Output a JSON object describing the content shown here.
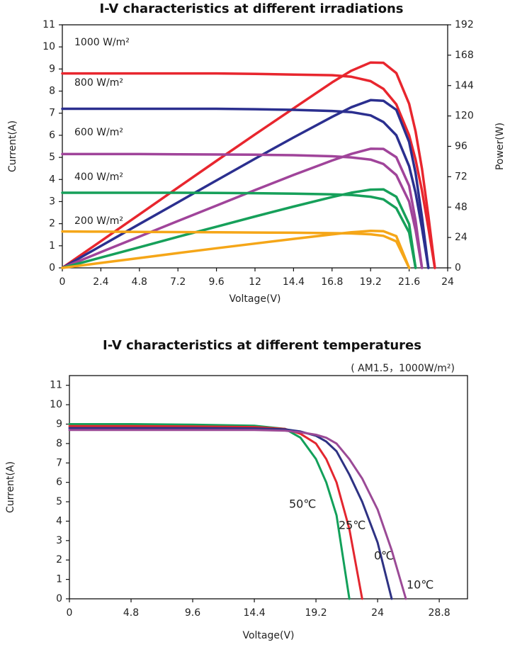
{
  "chart_data": [
    {
      "type": "line",
      "title": "I-V characteristics at different irradiations",
      "x_label": "Voltage(V)",
      "y_label": "Current(A)",
      "y2_label": "Power(W)",
      "xlim": [
        0,
        24
      ],
      "xticks": [
        0,
        2.4,
        4.8,
        7.2,
        9.6,
        12,
        14.4,
        16.8,
        19.2,
        21.6,
        24
      ],
      "ylim": [
        0,
        11
      ],
      "yticks": [
        0,
        1,
        2,
        3,
        4,
        5,
        6,
        7,
        8,
        9,
        10,
        11
      ],
      "y2lim": [
        0,
        192
      ],
      "y2ticks": [
        0,
        24,
        48,
        72,
        96,
        120,
        144,
        168,
        192
      ],
      "x": [
        0,
        2.4,
        4.8,
        7.2,
        9.6,
        12,
        14.4,
        16.8,
        18,
        19.2,
        20,
        20.8,
        21.6,
        22,
        22.4,
        22.8,
        23.2
      ],
      "series": [
        {
          "name": "1000 W/m²",
          "color": "#e8262e",
          "values": [
            8.8,
            8.8,
            8.8,
            8.8,
            8.8,
            8.78,
            8.75,
            8.72,
            8.65,
            8.45,
            8.1,
            7.4,
            6.0,
            4.9,
            3.5,
            1.8,
            0
          ]
        },
        {
          "color": "#e8262e",
          "axis": "y2",
          "values": [
            0,
            21.1,
            42.2,
            63.4,
            84.5,
            105.4,
            126,
            146.5,
            155.7,
            162.2,
            162,
            153.9,
            129.6,
            107.8,
            78.4,
            41.0,
            0
          ]
        },
        {
          "name": "800 W/m²",
          "color": "#2b2f8f",
          "values": [
            7.2,
            7.2,
            7.2,
            7.2,
            7.2,
            7.18,
            7.15,
            7.1,
            7.05,
            6.9,
            6.6,
            6.0,
            4.6,
            3.4,
            1.8,
            0,
            null
          ]
        },
        {
          "color": "#2b2f8f",
          "axis": "y2",
          "values": [
            0,
            17.3,
            34.6,
            51.8,
            69.1,
            86.2,
            103,
            119.3,
            126.9,
            132.5,
            132,
            124.8,
            99.4,
            74.8,
            40.3,
            0,
            null
          ]
        },
        {
          "name": "600 W/m²",
          "color": "#a0449a",
          "values": [
            5.15,
            5.15,
            5.15,
            5.14,
            5.13,
            5.12,
            5.1,
            5.05,
            5.0,
            4.9,
            4.7,
            4.2,
            3.0,
            1.7,
            0,
            null,
            null
          ]
        },
        {
          "color": "#a0449a",
          "axis": "y2",
          "values": [
            0,
            12.4,
            24.7,
            37.0,
            49.2,
            61.4,
            73.4,
            84.8,
            90,
            94.1,
            94,
            87.4,
            64.8,
            37.4,
            0,
            null,
            null
          ]
        },
        {
          "name": "400 W/m²",
          "color": "#16a05a",
          "values": [
            3.4,
            3.4,
            3.4,
            3.4,
            3.39,
            3.38,
            3.36,
            3.33,
            3.3,
            3.22,
            3.1,
            2.7,
            1.6,
            0,
            null,
            null,
            null
          ]
        },
        {
          "color": "#16a05a",
          "axis": "y2",
          "values": [
            0,
            8.2,
            16.3,
            24.5,
            32.5,
            40.6,
            48.4,
            55.9,
            59.4,
            61.8,
            62,
            56.2,
            34.6,
            0,
            null,
            null,
            null
          ]
        },
        {
          "name": "200 W/m²",
          "color": "#f5a618",
          "values": [
            1.65,
            1.64,
            1.63,
            1.62,
            1.61,
            1.6,
            1.59,
            1.57,
            1.56,
            1.52,
            1.45,
            1.2,
            0,
            null,
            null,
            null,
            null
          ]
        },
        {
          "color": "#f5a618",
          "axis": "y2",
          "values": [
            0,
            3.9,
            7.8,
            11.7,
            15.5,
            19.2,
            22.9,
            26.4,
            28.1,
            29.2,
            29,
            25,
            0,
            null,
            null,
            null,
            null
          ]
        }
      ]
    },
    {
      "type": "line",
      "title": "I-V characteristics at different temperatures",
      "subtitle": "( AM1.5，1000W/m²)",
      "x_label": "Voltage(V)",
      "y_label": "Current(A)",
      "xlim": [
        0,
        31
      ],
      "xticks": [
        0,
        4.8,
        9.6,
        14.4,
        19.2,
        24,
        28.8
      ],
      "ylim": [
        0,
        11.5
      ],
      "yticks": [
        0,
        1,
        2,
        3,
        4,
        5,
        6,
        7,
        8,
        9,
        10,
        11
      ],
      "x": [
        0,
        4.8,
        9.6,
        14.4,
        16.8,
        18,
        19.2,
        20,
        20.8,
        21.8,
        22.8,
        24,
        25.1,
        26.2
      ],
      "series": [
        {
          "name": "50℃",
          "color": "#12a05a",
          "values": [
            9.0,
            9.0,
            8.97,
            8.92,
            8.75,
            8.3,
            7.2,
            6.0,
            4.3,
            0,
            null,
            null,
            null,
            null
          ]
        },
        {
          "name": "25℃",
          "color": "#e3262f",
          "values": [
            8.9,
            8.9,
            8.88,
            8.85,
            8.75,
            8.5,
            8.0,
            7.2,
            6.0,
            3.6,
            0,
            null,
            null,
            null
          ]
        },
        {
          "name": "0℃",
          "color": "#2e3283",
          "values": [
            8.8,
            8.8,
            8.8,
            8.78,
            8.73,
            8.62,
            8.4,
            8.1,
            7.6,
            6.4,
            5.0,
            2.9,
            0,
            null
          ]
        },
        {
          "name": "10℃",
          "color": "#9b4a96",
          "values": [
            8.7,
            8.7,
            8.7,
            8.7,
            8.66,
            8.58,
            8.45,
            8.3,
            8.0,
            7.2,
            6.2,
            4.6,
            2.5,
            0
          ]
        }
      ]
    }
  ]
}
